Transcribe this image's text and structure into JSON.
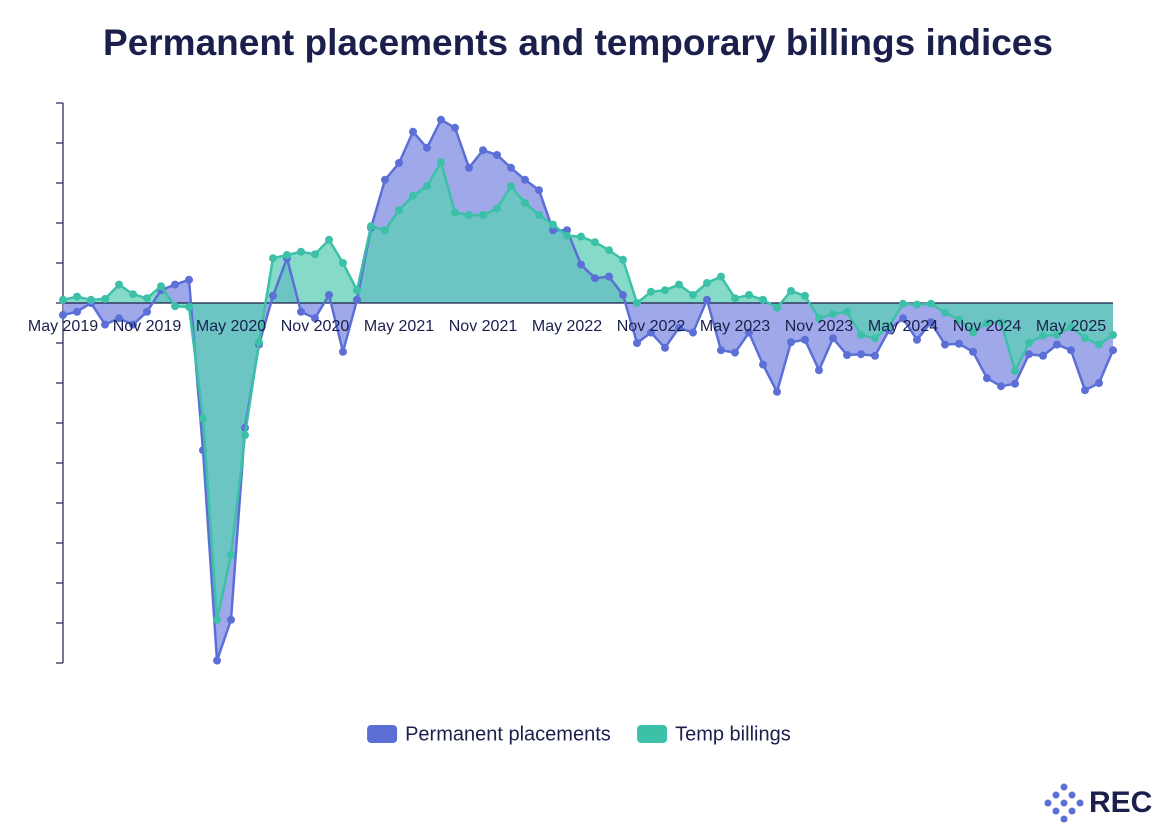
{
  "chart_data": {
    "type": "area",
    "title": "Permanent placements and temporary billings indices",
    "categories": [
      "May 2019",
      null,
      null,
      null,
      null,
      null,
      "Nov 2019",
      null,
      null,
      null,
      null,
      null,
      "May 2020",
      null,
      null,
      null,
      null,
      null,
      "Nov 2020",
      null,
      null,
      null,
      null,
      null,
      "May 2021",
      null,
      null,
      null,
      null,
      null,
      "Nov 2021",
      null,
      null,
      null,
      null,
      null,
      "May 2022",
      null,
      null,
      null,
      null,
      null,
      "Nov 2022",
      null,
      null,
      null,
      null,
      null,
      "May 2023",
      null,
      null,
      null,
      null,
      null,
      "Nov 2023",
      null,
      null,
      null,
      null,
      null,
      "May 2024",
      null,
      null,
      null,
      null,
      null,
      "Nov 2024",
      null,
      null,
      null,
      null,
      null,
      "May 2025",
      null,
      null,
      null
    ],
    "series": [
      {
        "name": "Permanent placements",
        "color": "#5b6fd6",
        "fill": "#8e9ae6",
        "values": [
          48.5,
          48.9,
          50,
          47.3,
          48.1,
          47.3,
          48.9,
          51.6,
          52.3,
          52.9,
          31.6,
          5.3,
          10.4,
          34.4,
          44.8,
          50.9,
          55.6,
          48.9,
          48.1,
          51,
          43.9,
          50.4,
          59.4,
          65.4,
          67.5,
          71.4,
          69.4,
          72.9,
          71.9,
          66.9,
          69.1,
          68.5,
          66.9,
          65.4,
          64.1,
          59.1,
          59.1,
          54.8,
          53.1,
          53.3,
          51,
          45,
          46.3,
          44.4,
          46.9,
          46.3,
          50.4,
          44.1,
          43.8,
          46.3,
          42.3,
          38.9,
          45.1,
          45.4,
          41.6,
          45.6,
          43.5,
          43.6,
          43.4,
          46.6,
          48.1,
          45.4,
          47.6,
          44.8,
          44.9,
          43.9,
          40.6,
          39.6,
          39.9,
          43.6,
          43.4,
          44.8,
          44.1,
          39.1,
          40,
          44.1
        ]
      },
      {
        "name": "Temp billings",
        "color": "#3cc1a8",
        "fill": "#5ccfb6",
        "values": [
          50.4,
          50.8,
          50.4,
          50.5,
          52.3,
          51.1,
          50.6,
          52.1,
          49.6,
          49.5,
          35.6,
          10.4,
          18.5,
          33.5,
          45.1,
          55.6,
          56,
          56.4,
          56.1,
          57.9,
          55,
          51.6,
          59.6,
          59.1,
          61.6,
          63.4,
          64.6,
          67.6,
          61.3,
          61,
          61,
          61.8,
          64.6,
          62.5,
          61,
          59.8,
          58.4,
          58.3,
          57.6,
          56.6,
          55.4,
          50,
          51.4,
          51.6,
          52.3,
          51,
          52.5,
          53.3,
          50.6,
          51,
          50.4,
          49.4,
          51.5,
          50.9,
          48.1,
          48.6,
          48.9,
          46,
          45.6,
          47.1,
          49.9,
          49.8,
          49.9,
          48.8,
          47.9,
          46.3,
          47.5,
          47.6,
          41.5,
          45,
          45.9,
          46,
          47,
          45.6,
          44.8,
          46
        ]
      }
    ],
    "ylim": [
      5,
      75
    ],
    "yticks": [
      5,
      10,
      15,
      20,
      25,
      30,
      35,
      40,
      45,
      50,
      55,
      60,
      65,
      70,
      75
    ],
    "baseline": 50,
    "legend": "bottom",
    "logo": "REC"
  }
}
